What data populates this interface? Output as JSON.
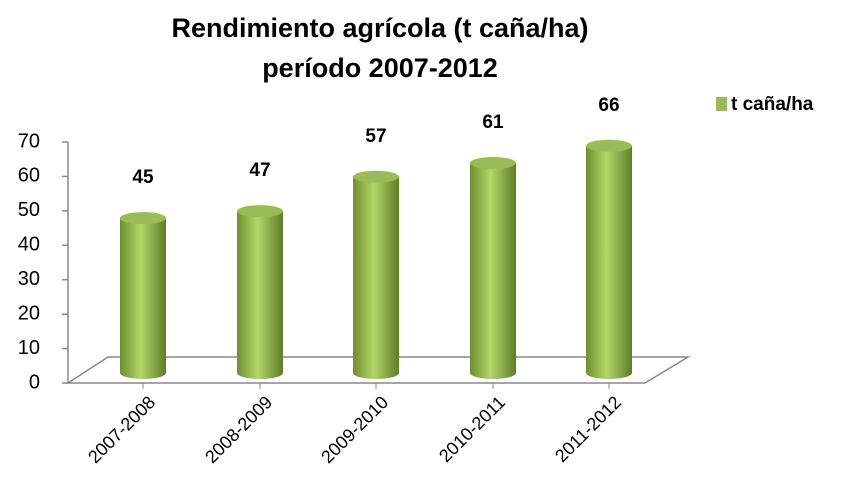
{
  "chart_data": {
    "type": "bar",
    "title": "Rendimiento agrícola (t caña/ha)",
    "subtitle": "período 2007-2012",
    "categories": [
      "2007-2008",
      "2008-2009",
      "2009-2010",
      "2010-2011",
      "2011-2012"
    ],
    "series": [
      {
        "name": "t caña/ha",
        "color": "#9bbb59",
        "values": [
          45,
          47,
          57,
          61,
          66
        ]
      }
    ],
    "ylim": [
      0,
      70
    ],
    "yticks": [
      0,
      10,
      20,
      30,
      40,
      50,
      60,
      70
    ],
    "legend": "top-right",
    "grid": false
  }
}
